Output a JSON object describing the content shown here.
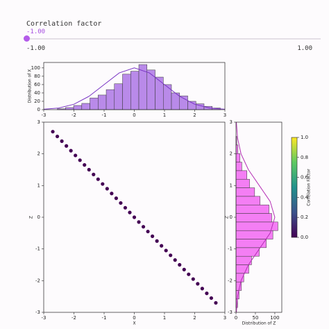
{
  "slider": {
    "label": "Correlation factor",
    "value": {
      "value": -1,
      "label": "-1.00"
    },
    "min": {
      "value": -1,
      "label": "-1.00"
    },
    "max": {
      "value": 1,
      "label": "1.00"
    }
  },
  "chart_data": [
    {
      "type": "histogram",
      "orientation": "vertical",
      "ylabel": "Distribution of X",
      "color": "#b98ae9",
      "line_color": "#7a35c4",
      "bins": [
        -2.55,
        -2.28,
        -2.01,
        -1.74,
        -1.47,
        -1.2,
        -0.93,
        -0.66,
        -0.39,
        -0.12,
        0.15,
        0.42,
        0.69,
        0.96,
        1.23,
        1.5,
        1.77,
        2.04,
        2.31,
        2.58,
        2.85
      ],
      "values": [
        2,
        5,
        10,
        15,
        28,
        35,
        48,
        62,
        85,
        92,
        108,
        95,
        78,
        60,
        40,
        33,
        20,
        14,
        8,
        4
      ],
      "kde": {
        "x": [
          -3,
          -2.5,
          -2,
          -1.5,
          -1,
          -0.5,
          0,
          0.5,
          1,
          1.5,
          2,
          2.5,
          3
        ],
        "values": [
          1,
          4,
          13,
          32,
          60,
          88,
          100,
          88,
          60,
          32,
          13,
          4,
          1
        ]
      },
      "xlim": [
        -3,
        3
      ],
      "xticks": [
        -3,
        -2,
        -1,
        0,
        1,
        2,
        3
      ],
      "ylim": [
        0,
        113
      ],
      "yticks": [
        0,
        20,
        40,
        60,
        80,
        100
      ]
    },
    {
      "type": "scatter",
      "xlabel": "X",
      "ylabel": "Z",
      "color": "#440154",
      "x": [
        -2.7,
        -2.55,
        -2.4,
        -2.25,
        -2.1,
        -1.95,
        -1.8,
        -1.65,
        -1.5,
        -1.35,
        -1.2,
        -1.05,
        -0.9,
        -0.75,
        -0.6,
        -0.45,
        -0.3,
        -0.15,
        0,
        0.15,
        0.3,
        0.45,
        0.6,
        0.75,
        0.9,
        1.05,
        1.2,
        1.35,
        1.5,
        1.65,
        1.8,
        1.95,
        2.1,
        2.25,
        2.4,
        2.55,
        2.7
      ],
      "y": [
        2.7,
        2.55,
        2.4,
        2.25,
        2.1,
        1.95,
        1.8,
        1.65,
        1.5,
        1.35,
        1.2,
        1.05,
        0.9,
        0.75,
        0.6,
        0.45,
        0.3,
        0.15,
        0,
        -0.15,
        -0.3,
        -0.45,
        -0.6,
        -0.75,
        -0.9,
        -1.05,
        -1.2,
        -1.35,
        -1.5,
        -1.65,
        -1.8,
        -1.95,
        -2.1,
        -2.25,
        -2.4,
        -2.55,
        -2.7
      ],
      "xlim": [
        -3,
        3
      ],
      "xticks": [
        -3,
        -2,
        -1,
        0,
        1,
        2,
        3
      ],
      "ylim": [
        -3,
        3
      ],
      "yticks": [
        -3,
        -2,
        -1,
        0,
        1,
        2,
        3
      ]
    },
    {
      "type": "histogram",
      "orientation": "horizontal",
      "xlabel": "Distribution of Z",
      "ylabel": "Z",
      "color": "#f47ef4",
      "line_color": "#b52fb5",
      "bins": [
        -2.85,
        -2.58,
        -2.31,
        -2.04,
        -1.77,
        -1.5,
        -1.23,
        -0.96,
        -0.69,
        -0.42,
        -0.15,
        0.12,
        0.39,
        0.66,
        0.93,
        1.2,
        1.47,
        1.74,
        2.01,
        2.28,
        2.55
      ],
      "values": [
        4,
        8,
        14,
        20,
        33,
        40,
        60,
        78,
        95,
        108,
        92,
        85,
        62,
        48,
        35,
        28,
        15,
        10,
        5,
        2
      ],
      "kde": {
        "x": [
          -3,
          -2.5,
          -2,
          -1.5,
          -1,
          -0.5,
          0,
          0.5,
          1,
          1.5,
          2,
          2.5,
          3
        ],
        "values": [
          1,
          4,
          13,
          32,
          60,
          88,
          100,
          88,
          60,
          32,
          13,
          4,
          1
        ]
      },
      "xlim": [
        0,
        118
      ],
      "xticks": [
        0,
        50,
        100
      ],
      "ylim": [
        -3,
        3
      ],
      "yticks": [
        -3,
        -2,
        -1,
        0,
        1,
        2,
        3
      ]
    },
    {
      "type": "colorbar",
      "label": "Correlation Factor",
      "colors": [
        "#440154",
        "#3b528b",
        "#21918c",
        "#5ec962",
        "#fde725"
      ],
      "ylim": [
        0,
        1
      ],
      "yticks": [
        {
          "value": 0,
          "label": "0.0"
        },
        {
          "value": 0.2,
          "label": "0.2"
        },
        {
          "value": 0.4,
          "label": "0.4"
        },
        {
          "value": 0.6,
          "label": "0.6"
        },
        {
          "value": 0.8,
          "label": "0.8"
        },
        {
          "value": 1,
          "label": "1.0"
        }
      ]
    }
  ]
}
